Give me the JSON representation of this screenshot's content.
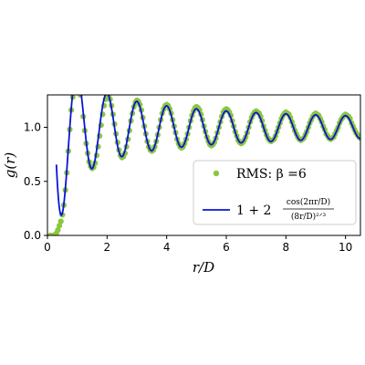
{
  "chart_data": {
    "type": "line",
    "xlabel": "r/D",
    "ylabel": "g(r)",
    "xlim": [
      0,
      10.5
    ],
    "ylim": [
      0,
      1.3
    ],
    "xticks": [
      "0",
      "2",
      "4",
      "6",
      "8",
      "10"
    ],
    "yticks": [
      "0.0",
      "0.5",
      "1.0"
    ],
    "legend_position": "center-right",
    "series": [
      {
        "name": "RMS: β =6",
        "style": "scatter",
        "color": "#8cc63f",
        "points": [
          [
            0.1,
            0.0
          ],
          [
            0.2,
            0.0
          ],
          [
            0.3,
            0.02
          ],
          [
            0.35,
            0.05
          ],
          [
            0.4,
            0.09
          ],
          [
            0.45,
            0.13
          ],
          [
            0.5,
            0.19
          ],
          [
            0.55,
            0.28
          ],
          [
            0.6,
            0.42
          ],
          [
            0.65,
            0.58
          ],
          [
            0.7,
            0.78
          ],
          [
            0.75,
            0.98
          ],
          [
            0.8,
            1.16
          ],
          [
            0.85,
            1.28
          ],
          [
            1.0,
            1.35
          ],
          [
            1.1,
            1.3
          ],
          [
            1.2,
            1.1
          ],
          [
            1.25,
            0.97
          ],
          [
            1.3,
            0.85
          ],
          [
            1.35,
            0.76
          ],
          [
            1.4,
            0.68
          ],
          [
            1.45,
            0.64
          ],
          [
            1.5,
            0.62
          ],
          [
            1.55,
            0.63
          ],
          [
            1.6,
            0.67
          ],
          [
            1.65,
            0.74
          ],
          [
            1.7,
            0.82
          ],
          [
            1.75,
            0.92
          ],
          [
            1.8,
            1.02
          ],
          [
            1.85,
            1.12
          ],
          [
            1.9,
            1.2
          ],
          [
            1.95,
            1.26
          ],
          [
            2.0,
            1.29
          ],
          [
            2.05,
            1.29
          ],
          [
            2.1,
            1.26
          ],
          [
            2.15,
            1.2
          ],
          [
            2.2,
            1.12
          ],
          [
            2.25,
            1.03
          ],
          [
            2.3,
            0.94
          ],
          [
            2.35,
            0.86
          ],
          [
            2.4,
            0.79
          ],
          [
            2.45,
            0.74
          ],
          [
            2.5,
            0.72
          ],
          [
            2.55,
            0.73
          ],
          [
            2.6,
            0.76
          ],
          [
            2.65,
            0.82
          ],
          [
            2.7,
            0.89
          ],
          [
            2.75,
            0.97
          ],
          [
            2.8,
            1.06
          ],
          [
            2.85,
            1.13
          ],
          [
            2.9,
            1.19
          ],
          [
            2.95,
            1.23
          ],
          [
            3.0,
            1.25
          ],
          [
            3.05,
            1.24
          ],
          [
            3.1,
            1.21
          ],
          [
            3.15,
            1.16
          ],
          [
            3.2,
            1.09
          ],
          [
            3.25,
            1.01
          ],
          [
            3.3,
            0.94
          ],
          [
            3.35,
            0.87
          ],
          [
            3.4,
            0.82
          ],
          [
            3.45,
            0.79
          ],
          [
            3.5,
            0.78
          ],
          [
            3.55,
            0.79
          ],
          [
            3.6,
            0.82
          ],
          [
            3.65,
            0.87
          ],
          [
            3.7,
            0.93
          ],
          [
            3.75,
            1.0
          ],
          [
            3.8,
            1.07
          ],
          [
            3.85,
            1.13
          ],
          [
            3.9,
            1.17
          ],
          [
            3.95,
            1.2
          ],
          [
            4.0,
            1.21
          ],
          [
            4.05,
            1.2
          ],
          [
            4.1,
            1.17
          ],
          [
            4.15,
            1.13
          ],
          [
            4.2,
            1.07
          ],
          [
            4.25,
            1.01
          ],
          [
            4.3,
            0.95
          ],
          [
            4.35,
            0.89
          ],
          [
            4.4,
            0.85
          ],
          [
            4.45,
            0.82
          ],
          [
            4.5,
            0.81
          ],
          [
            4.55,
            0.82
          ],
          [
            4.6,
            0.85
          ],
          [
            4.65,
            0.89
          ],
          [
            4.7,
            0.94
          ],
          [
            4.75,
            1.0
          ],
          [
            4.8,
            1.06
          ],
          [
            4.85,
            1.11
          ],
          [
            4.9,
            1.15
          ],
          [
            4.95,
            1.18
          ],
          [
            5.0,
            1.19
          ],
          [
            5.05,
            1.18
          ],
          [
            5.1,
            1.16
          ],
          [
            5.15,
            1.12
          ],
          [
            5.2,
            1.07
          ],
          [
            5.25,
            1.01
          ],
          [
            5.3,
            0.96
          ],
          [
            5.35,
            0.91
          ],
          [
            5.4,
            0.87
          ],
          [
            5.45,
            0.84
          ],
          [
            5.5,
            0.83
          ],
          [
            5.55,
            0.84
          ],
          [
            5.6,
            0.86
          ],
          [
            5.65,
            0.9
          ],
          [
            5.7,
            0.95
          ],
          [
            5.75,
            1.0
          ],
          [
            5.8,
            1.05
          ],
          [
            5.85,
            1.1
          ],
          [
            5.9,
            1.14
          ],
          [
            5.95,
            1.16
          ],
          [
            6.0,
            1.17
          ],
          [
            6.05,
            1.16
          ],
          [
            6.1,
            1.14
          ],
          [
            6.15,
            1.11
          ],
          [
            6.2,
            1.06
          ],
          [
            6.25,
            1.01
          ],
          [
            6.3,
            0.96
          ],
          [
            6.35,
            0.92
          ],
          [
            6.4,
            0.88
          ],
          [
            6.45,
            0.86
          ],
          [
            6.5,
            0.85
          ],
          [
            6.55,
            0.86
          ],
          [
            6.6,
            0.88
          ],
          [
            6.65,
            0.91
          ],
          [
            6.7,
            0.95
          ],
          [
            6.75,
            1.0
          ],
          [
            6.8,
            1.05
          ],
          [
            6.85,
            1.09
          ],
          [
            6.9,
            1.12
          ],
          [
            6.95,
            1.14
          ],
          [
            7.0,
            1.15
          ],
          [
            7.05,
            1.14
          ],
          [
            7.1,
            1.13
          ],
          [
            7.15,
            1.1
          ],
          [
            7.2,
            1.06
          ],
          [
            7.25,
            1.01
          ],
          [
            7.3,
            0.97
          ],
          [
            7.35,
            0.93
          ],
          [
            7.4,
            0.9
          ],
          [
            7.45,
            0.88
          ],
          [
            7.5,
            0.87
          ],
          [
            7.55,
            0.88
          ],
          [
            7.6,
            0.89
          ],
          [
            7.65,
            0.92
          ],
          [
            7.7,
            0.96
          ],
          [
            7.75,
            1.0
          ],
          [
            7.8,
            1.04
          ],
          [
            7.85,
            1.08
          ],
          [
            7.9,
            1.11
          ],
          [
            7.95,
            1.13
          ],
          [
            8.0,
            1.14
          ],
          [
            8.05,
            1.13
          ],
          [
            8.1,
            1.12
          ],
          [
            8.15,
            1.09
          ],
          [
            8.2,
            1.05
          ],
          [
            8.25,
            1.01
          ],
          [
            8.3,
            0.97
          ],
          [
            8.35,
            0.94
          ],
          [
            8.4,
            0.91
          ],
          [
            8.45,
            0.89
          ],
          [
            8.5,
            0.88
          ],
          [
            8.55,
            0.89
          ],
          [
            8.6,
            0.9
          ],
          [
            8.65,
            0.93
          ],
          [
            8.7,
            0.96
          ],
          [
            8.75,
            1.0
          ],
          [
            8.8,
            1.04
          ],
          [
            8.85,
            1.07
          ],
          [
            8.9,
            1.1
          ],
          [
            8.95,
            1.12
          ],
          [
            9.0,
            1.13
          ],
          [
            9.05,
            1.12
          ],
          [
            9.1,
            1.11
          ],
          [
            9.15,
            1.08
          ],
          [
            9.2,
            1.05
          ],
          [
            9.25,
            1.01
          ],
          [
            9.3,
            0.98
          ],
          [
            9.35,
            0.94
          ],
          [
            9.4,
            0.92
          ],
          [
            9.45,
            0.9
          ],
          [
            9.5,
            0.89
          ],
          [
            9.55,
            0.9
          ],
          [
            9.6,
            0.91
          ],
          [
            9.65,
            0.94
          ],
          [
            9.7,
            0.97
          ],
          [
            9.75,
            1.0
          ],
          [
            9.8,
            1.04
          ],
          [
            9.85,
            1.07
          ],
          [
            9.9,
            1.09
          ],
          [
            9.95,
            1.11
          ],
          [
            10.0,
            1.12
          ],
          [
            10.05,
            1.11
          ],
          [
            10.1,
            1.1
          ],
          [
            10.15,
            1.08
          ],
          [
            10.2,
            1.04
          ],
          [
            10.25,
            1.01
          ],
          [
            10.3,
            0.98
          ],
          [
            10.35,
            0.95
          ],
          [
            10.4,
            0.93
          ],
          [
            10.45,
            0.91
          ],
          [
            10.5,
            0.9
          ]
        ]
      },
      {
        "name": "1 + 2cos(2πr/D)/(8r/D)^(2/3)",
        "style": "line",
        "color": "#0a14d6",
        "function": "1 + 2*cos(2*pi*r)/(8*r)^(2/3)",
        "x_range": [
          0.3,
          10.5
        ]
      }
    ]
  },
  "legend": {
    "scatter_label": "RMS: β =6",
    "line_label_lead": "1 + 2",
    "line_label_numerator": "cos(2πr/D)",
    "line_label_denominator": "(8r/D)²ᐟ³"
  }
}
